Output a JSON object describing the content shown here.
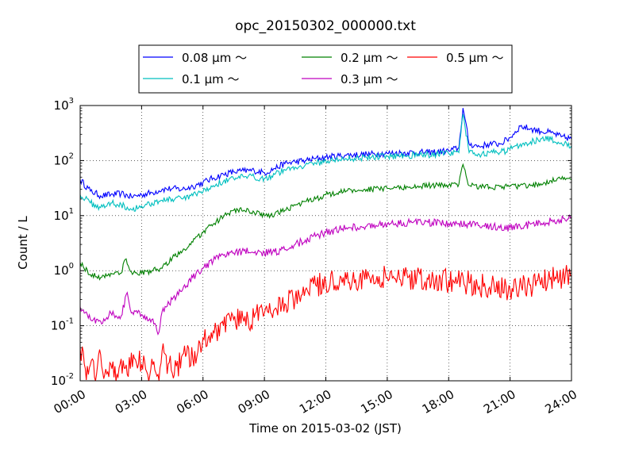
{
  "chart_data": {
    "type": "line",
    "title": "opc_20150302_000000.txt",
    "xlabel": "Time on 2015-03-02 (JST)",
    "ylabel": "Count / L",
    "yscale": "log",
    "ylim": [
      0.01,
      1000
    ],
    "xlim": [
      "2015-03-02 00:00",
      "2015-03-03 00:00"
    ],
    "x_unit": "hours since 2015-03-02 00:00",
    "x_ticks": [
      "00:00",
      "03:00",
      "06:00",
      "09:00",
      "12:00",
      "15:00",
      "18:00",
      "21:00",
      "24:00"
    ],
    "y_ticks": [
      {
        "base": "10",
        "exp": "-2"
      },
      {
        "base": "10",
        "exp": "-1"
      },
      {
        "base": "10",
        "exp": "0"
      },
      {
        "base": "10",
        "exp": "1"
      },
      {
        "base": "10",
        "exp": "2"
      },
      {
        "base": "10",
        "exp": "3"
      }
    ],
    "grid": true,
    "legend_position": "top, outside plot area",
    "series": [
      {
        "name": "0.08 μm ～",
        "color": "#0000ff",
        "points": [
          [
            0,
            45
          ],
          [
            0.5,
            28
          ],
          [
            1,
            23
          ],
          [
            1.5,
            24
          ],
          [
            2,
            25
          ],
          [
            2.5,
            22
          ],
          [
            3,
            24
          ],
          [
            3.5,
            26
          ],
          [
            4,
            30
          ],
          [
            4.5,
            31
          ],
          [
            5,
            30
          ],
          [
            5.5,
            34
          ],
          [
            6,
            40
          ],
          [
            6.5,
            48
          ],
          [
            7,
            56
          ],
          [
            7.5,
            62
          ],
          [
            8,
            65
          ],
          [
            8.5,
            66
          ],
          [
            9,
            60
          ],
          [
            9.5,
            72
          ],
          [
            10,
            88
          ],
          [
            10.5,
            95
          ],
          [
            11,
            100
          ],
          [
            11.5,
            108
          ],
          [
            12,
            115
          ],
          [
            13,
            125
          ],
          [
            14,
            130
          ],
          [
            15,
            135
          ],
          [
            16,
            140
          ],
          [
            17,
            140
          ],
          [
            18,
            150
          ],
          [
            18.5,
            170
          ],
          [
            18.7,
            900
          ],
          [
            19,
            200
          ],
          [
            19.5,
            180
          ],
          [
            20,
            200
          ],
          [
            20.5,
            200
          ],
          [
            21,
            260
          ],
          [
            21.5,
            420
          ],
          [
            22,
            380
          ],
          [
            22.5,
            340
          ],
          [
            23,
            320
          ],
          [
            23.5,
            270
          ],
          [
            24,
            250
          ]
        ]
      },
      {
        "name": "0.1 μm ～",
        "color": "#00bfbf",
        "points": [
          [
            0,
            24
          ],
          [
            0.5,
            17
          ],
          [
            1,
            14
          ],
          [
            1.5,
            17
          ],
          [
            2,
            16
          ],
          [
            2.5,
            13
          ],
          [
            3,
            15
          ],
          [
            3.5,
            17
          ],
          [
            4,
            19
          ],
          [
            4.5,
            20
          ],
          [
            5,
            20
          ],
          [
            5.5,
            23
          ],
          [
            6,
            27
          ],
          [
            6.5,
            35
          ],
          [
            7,
            42
          ],
          [
            7.5,
            47
          ],
          [
            8,
            50
          ],
          [
            8.5,
            50
          ],
          [
            9,
            48
          ],
          [
            9.5,
            56
          ],
          [
            10,
            68
          ],
          [
            10.5,
            76
          ],
          [
            11,
            83
          ],
          [
            11.5,
            90
          ],
          [
            12,
            98
          ],
          [
            13,
            108
          ],
          [
            14,
            115
          ],
          [
            15,
            120
          ],
          [
            16,
            125
          ],
          [
            17,
            128
          ],
          [
            18,
            135
          ],
          [
            18.5,
            140
          ],
          [
            18.7,
            700
          ],
          [
            19,
            140
          ],
          [
            19.5,
            130
          ],
          [
            20,
            140
          ],
          [
            20.5,
            140
          ],
          [
            21,
            160
          ],
          [
            21.5,
            200
          ],
          [
            22,
            220
          ],
          [
            22.5,
            250
          ],
          [
            23,
            240
          ],
          [
            23.5,
            210
          ],
          [
            24,
            185
          ]
        ]
      },
      {
        "name": "0.2 μm ～",
        "color": "#008000",
        "points": [
          [
            0,
            1.4
          ],
          [
            0.5,
            0.85
          ],
          [
            1,
            0.75
          ],
          [
            1.5,
            0.9
          ],
          [
            2,
            0.9
          ],
          [
            2.2,
            1.6
          ],
          [
            2.5,
            0.95
          ],
          [
            3,
            0.9
          ],
          [
            3.5,
            1.0
          ],
          [
            4,
            1.1
          ],
          [
            4.5,
            1.7
          ],
          [
            5,
            2.3
          ],
          [
            5.5,
            3.3
          ],
          [
            6,
            5.0
          ],
          [
            6.5,
            7.0
          ],
          [
            7,
            9.5
          ],
          [
            7.5,
            12.5
          ],
          [
            8,
            12.5
          ],
          [
            8.5,
            11.5
          ],
          [
            9,
            10.0
          ],
          [
            9.5,
            10.5
          ],
          [
            10,
            12.5
          ],
          [
            10.5,
            15.5
          ],
          [
            11,
            18
          ],
          [
            11.5,
            20
          ],
          [
            12,
            24
          ],
          [
            13,
            28
          ],
          [
            14,
            30
          ],
          [
            15,
            31
          ],
          [
            16,
            33
          ],
          [
            17,
            35
          ],
          [
            18,
            36
          ],
          [
            18.5,
            37
          ],
          [
            18.7,
            85
          ],
          [
            19,
            35
          ],
          [
            20,
            33
          ],
          [
            21,
            34
          ],
          [
            22,
            35
          ],
          [
            22.5,
            38
          ],
          [
            23,
            43
          ],
          [
            23.5,
            46
          ],
          [
            24,
            45
          ]
        ]
      },
      {
        "name": "0.3 μm ～",
        "color": "#bf00bf",
        "points": [
          [
            0,
            0.22
          ],
          [
            0.5,
            0.13
          ],
          [
            1,
            0.12
          ],
          [
            1.5,
            0.17
          ],
          [
            2,
            0.15
          ],
          [
            2.3,
            0.4
          ],
          [
            2.5,
            0.17
          ],
          [
            3,
            0.16
          ],
          [
            3.5,
            0.13
          ],
          [
            3.8,
            0.07
          ],
          [
            4,
            0.18
          ],
          [
            4.5,
            0.3
          ],
          [
            5,
            0.45
          ],
          [
            5.5,
            0.75
          ],
          [
            6,
            1.1
          ],
          [
            6.5,
            1.5
          ],
          [
            7,
            1.9
          ],
          [
            7.5,
            2.1
          ],
          [
            8,
            2.3
          ],
          [
            8.5,
            2.1
          ],
          [
            9,
            2.1
          ],
          [
            9.5,
            2.2
          ],
          [
            10,
            2.4
          ],
          [
            10.5,
            3.0
          ],
          [
            11,
            3.6
          ],
          [
            11.5,
            4.2
          ],
          [
            12,
            5.0
          ],
          [
            13,
            6.0
          ],
          [
            14,
            6.5
          ],
          [
            15,
            7.0
          ],
          [
            16,
            7.5
          ],
          [
            17,
            7.5
          ],
          [
            18,
            7.2
          ],
          [
            19,
            7.0
          ],
          [
            20,
            6.5
          ],
          [
            21,
            6.0
          ],
          [
            21.5,
            6.2
          ],
          [
            22,
            7.0
          ],
          [
            23,
            8.0
          ],
          [
            24,
            9.0
          ]
        ]
      },
      {
        "name": "0.5 μm ～",
        "color": "#ff0000",
        "points": [
          [
            0,
            0.04
          ],
          [
            0.2,
            0.02
          ],
          [
            0.4,
            0.013
          ],
          [
            0.6,
            0.025
          ],
          [
            0.8,
            0.013
          ],
          [
            1,
            0.03
          ],
          [
            1.2,
            0.013
          ],
          [
            1.5,
            0.02
          ],
          [
            1.8,
            0.013
          ],
          [
            2,
            0.025
          ],
          [
            2.3,
            0.013
          ],
          [
            2.6,
            0.03
          ],
          [
            3,
            0.02
          ],
          [
            3.3,
            0.013
          ],
          [
            3.5,
            0.025
          ],
          [
            3.8,
            0.013
          ],
          [
            4,
            0.035
          ],
          [
            4.3,
            0.02
          ],
          [
            4.6,
            0.013
          ],
          [
            5,
            0.03
          ],
          [
            5.5,
            0.025
          ],
          [
            6,
            0.06
          ],
          [
            6.5,
            0.08
          ],
          [
            7,
            0.1
          ],
          [
            7.5,
            0.13
          ],
          [
            8,
            0.12
          ],
          [
            8.5,
            0.14
          ],
          [
            9,
            0.17
          ],
          [
            9.5,
            0.2
          ],
          [
            10,
            0.25
          ],
          [
            10.5,
            0.3
          ],
          [
            11,
            0.45
          ],
          [
            11.5,
            0.55
          ],
          [
            12,
            0.6
          ],
          [
            13,
            0.7
          ],
          [
            14,
            0.7
          ],
          [
            15,
            0.75
          ],
          [
            16,
            0.75
          ],
          [
            17,
            0.7
          ],
          [
            18,
            0.65
          ],
          [
            19,
            0.6
          ],
          [
            20,
            0.5
          ],
          [
            21,
            0.45
          ],
          [
            22,
            0.55
          ],
          [
            23,
            0.75
          ],
          [
            24,
            0.8
          ]
        ]
      }
    ]
  }
}
